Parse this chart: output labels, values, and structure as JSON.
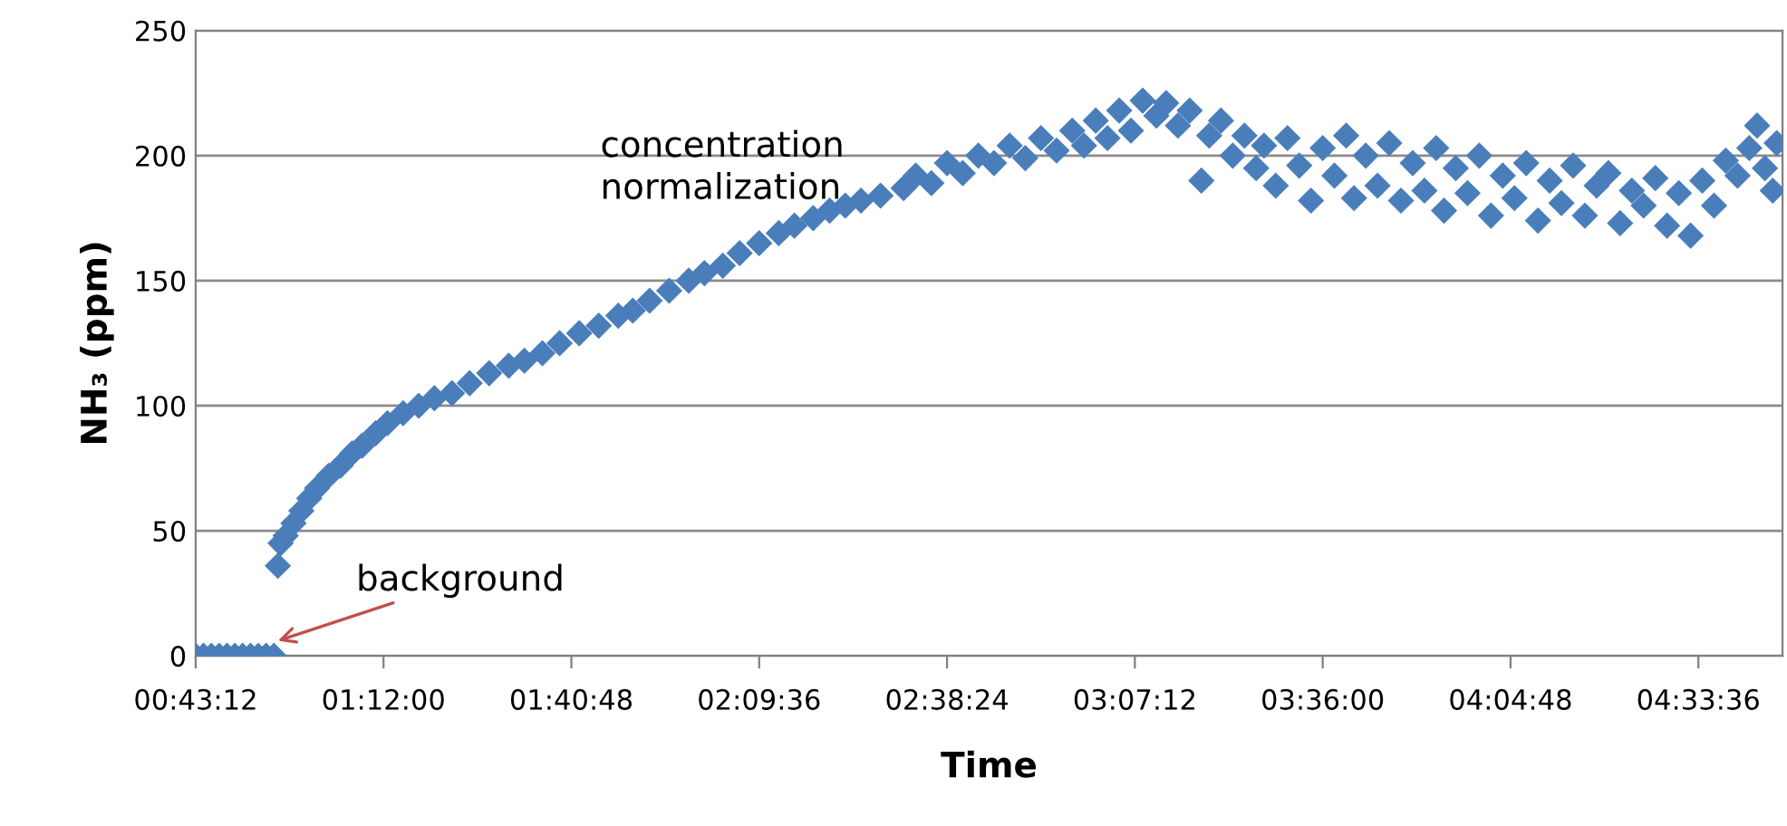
{
  "chart_data": {
    "type": "scatter",
    "xlabel": "Time",
    "ylabel": "NH₃ (ppm)",
    "marker": "diamond",
    "grid": "y",
    "xlim": [
      0.72,
      4.775
    ],
    "ylim": [
      0,
      250
    ],
    "xticks": [
      {
        "value": 0.72,
        "label": "00:43:12"
      },
      {
        "value": 1.2,
        "label": "01:12:00"
      },
      {
        "value": 1.68,
        "label": "01:40:48"
      },
      {
        "value": 2.16,
        "label": "02:09:36"
      },
      {
        "value": 2.64,
        "label": "02:38:24"
      },
      {
        "value": 3.12,
        "label": "03:07:12"
      },
      {
        "value": 3.6,
        "label": "03:36:00"
      },
      {
        "value": 4.08,
        "label": "04:04:48"
      },
      {
        "value": 4.56,
        "label": "04:33:36"
      }
    ],
    "yticks": [
      0,
      50,
      100,
      150,
      200,
      250
    ],
    "annotations": [
      "concentration\nnormalization",
      {
        "text": "background",
        "x": 0.93,
        "y": 0
      }
    ],
    "series": [
      {
        "color": "#4a7ebb",
        "x": [
          0.72,
          0.74,
          0.76,
          0.78,
          0.8,
          0.82,
          0.84,
          0.86,
          0.88,
          0.9,
          0.92,
          0.93,
          0.937,
          0.95,
          0.97,
          0.99,
          1.01,
          1.03,
          1.06,
          1.09,
          1.12,
          1.145,
          1.18,
          1.21,
          1.25,
          1.29,
          1.33,
          1.375,
          1.42,
          1.47,
          1.52,
          1.56,
          1.606,
          1.65,
          1.7,
          1.75,
          1.8,
          1.837,
          1.88,
          1.93,
          1.98,
          2.02,
          2.067,
          2.11,
          2.16,
          2.21,
          2.25,
          2.298,
          2.34,
          2.38,
          2.42,
          2.47,
          2.529,
          2.56,
          2.6,
          2.64,
          2.68,
          2.72,
          2.76,
          2.8,
          2.84,
          2.88,
          2.92,
          2.96,
          2.99,
          3.02,
          3.05,
          3.08,
          3.11,
          3.14,
          3.175,
          3.2,
          3.23,
          3.26,
          3.29,
          3.31,
          3.34,
          3.37,
          3.4,
          3.43,
          3.45,
          3.48,
          3.51,
          3.54,
          3.57,
          3.6,
          3.63,
          3.66,
          3.68,
          3.71,
          3.74,
          3.77,
          3.8,
          3.83,
          3.86,
          3.89,
          3.91,
          3.94,
          3.97,
          4.0,
          4.03,
          4.06,
          4.09,
          4.12,
          4.15,
          4.18,
          4.21,
          4.24,
          4.27,
          4.3,
          4.33,
          4.36,
          4.39,
          4.42,
          4.45,
          4.48,
          4.51,
          4.54,
          4.57,
          4.6,
          4.63,
          4.66,
          4.69,
          4.71,
          4.73,
          4.75,
          4.76
        ],
        "values": [
          0,
          0,
          0,
          0,
          0,
          0,
          0,
          0,
          0,
          0,
          0,
          36,
          45,
          48,
          53,
          58,
          63,
          67,
          72,
          76,
          81,
          84,
          89,
          93,
          97,
          100,
          103,
          105,
          109,
          113,
          116,
          118,
          121,
          125,
          129,
          132,
          136,
          138,
          142,
          146,
          150,
          153,
          156,
          161,
          165,
          169,
          172,
          175,
          178,
          180,
          182,
          184,
          187,
          192,
          189,
          197,
          193,
          200,
          197,
          204,
          199,
          207,
          202,
          210,
          204,
          214,
          207,
          218,
          210,
          222,
          216,
          221,
          212,
          218,
          190,
          208,
          214,
          200,
          208,
          195,
          204,
          188,
          207,
          196,
          182,
          203,
          192,
          208,
          183,
          200,
          188,
          205,
          182,
          197,
          186,
          203,
          178,
          195,
          185,
          200,
          176,
          192,
          183,
          197,
          174,
          190,
          181,
          196,
          176,
          188,
          193,
          173,
          186,
          180,
          191,
          172,
          185,
          168,
          190,
          180,
          198,
          192,
          203,
          212,
          195,
          186,
          205
        ]
      }
    ]
  }
}
